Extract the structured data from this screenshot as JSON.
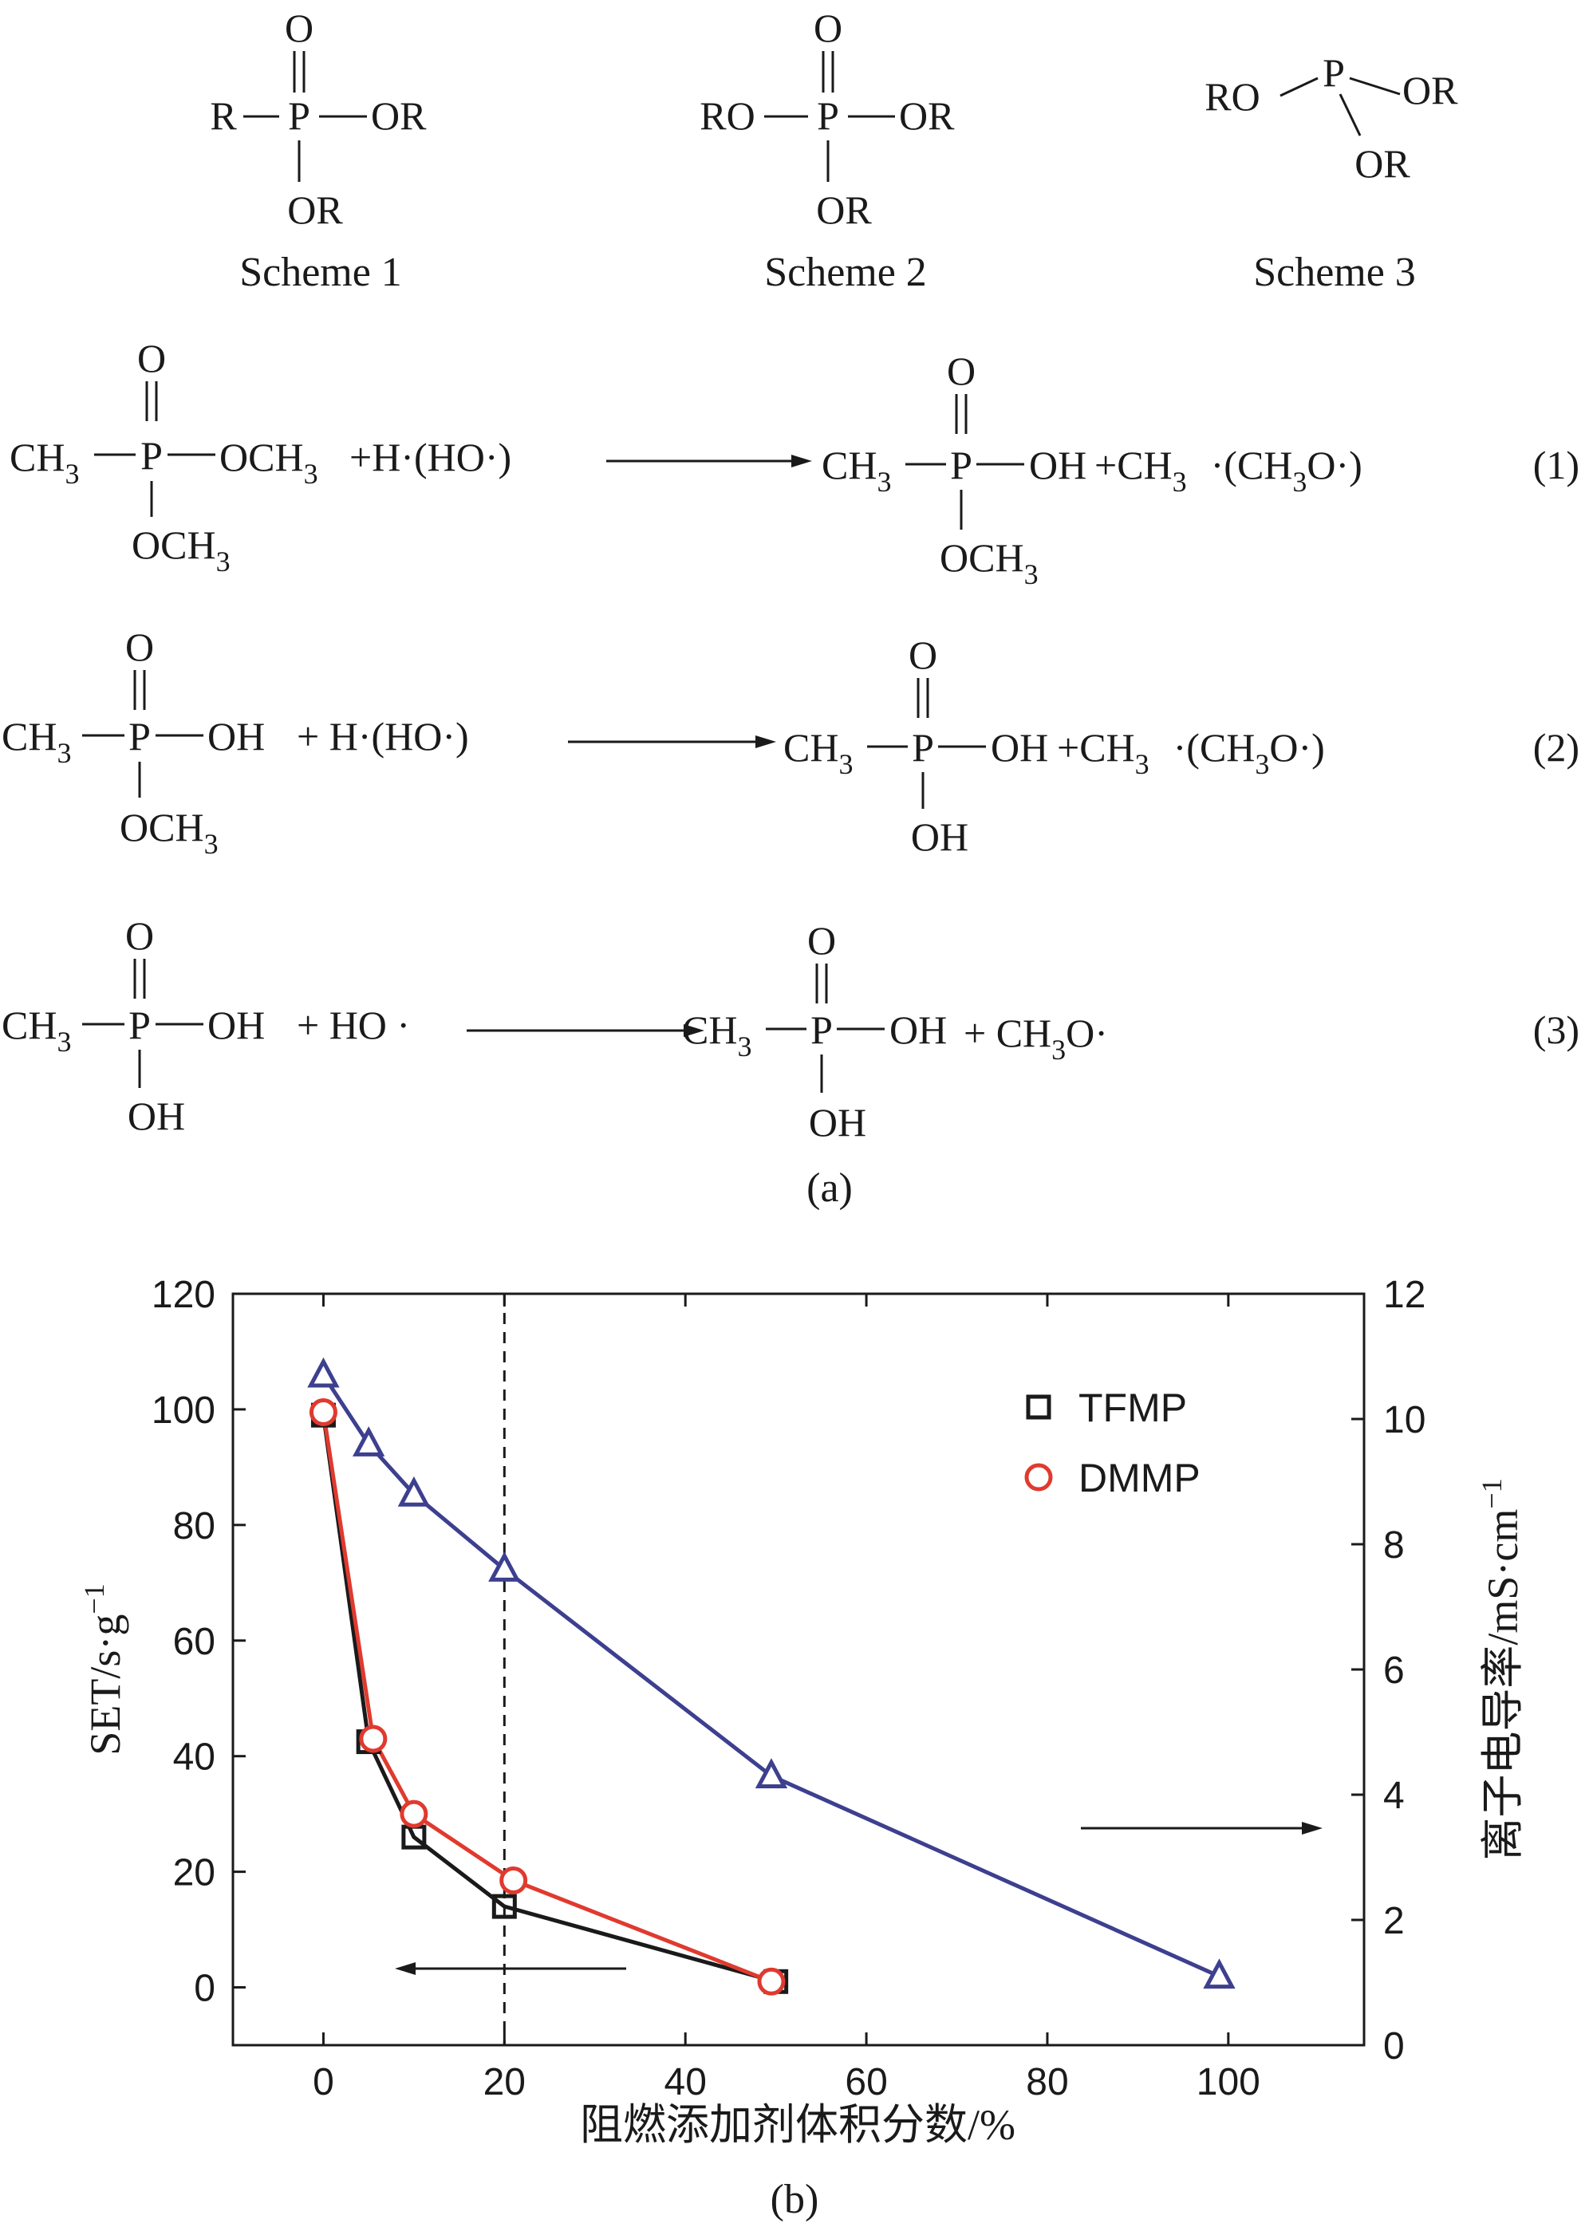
{
  "panel_a": {
    "caption": "(a)",
    "schemes": [
      {
        "label": "Scheme 1",
        "left": "R",
        "right": "OR",
        "top": "O",
        "bottom": "OR",
        "center": "P"
      },
      {
        "label": "Scheme 2",
        "left": "RO",
        "right": "OR",
        "top": "O",
        "bottom": "OR",
        "center": "P"
      },
      {
        "label": "Scheme 3",
        "left": "RO",
        "right": "OR",
        "bottom": "OR",
        "center": "P"
      }
    ],
    "reactions": [
      {
        "number": "(1)",
        "reactant": {
          "left": "CH",
          "left_sub": "3",
          "right": "OCH",
          "right_sub": "3",
          "top": "O",
          "bottom": "OCH",
          "bottom_sub": "3",
          "center": "P"
        },
        "reagent": "+H·(HO·)",
        "product": {
          "left": "CH",
          "left_sub": "3",
          "right": "OH",
          "top": "O",
          "bottom": "OCH",
          "bottom_sub": "3",
          "center": "P"
        },
        "byproduct": {
          "a": "+CH",
          "a_sub": "3",
          "b": "·(CH",
          "b_sub": "3",
          "c": "O·)"
        }
      },
      {
        "number": "(2)",
        "reactant": {
          "left": "CH",
          "left_sub": "3",
          "right": "OH",
          "top": "O",
          "bottom": "OCH",
          "bottom_sub": "3",
          "center": "P"
        },
        "reagent": "+ H·(HO·)",
        "product": {
          "left": "CH",
          "left_sub": "3",
          "right": "OH",
          "top": "O",
          "bottom": "OH",
          "center": "P"
        },
        "byproduct": {
          "a": "+CH",
          "a_sub": "3",
          "b": "·(CH",
          "b_sub": "3",
          "c": "O·)"
        }
      },
      {
        "number": "(3)",
        "reactant": {
          "left": "CH",
          "left_sub": "3",
          "right": "OH",
          "top": "O",
          "bottom": "OH",
          "center": "P"
        },
        "reagent": "+ HO ·",
        "product": {
          "left": "CH",
          "left_sub": "3",
          "right": "OH",
          "top": "O",
          "bottom": "OH",
          "center": "P"
        },
        "byproduct": {
          "a": "+ CH",
          "a_sub": "3",
          "b": "O·"
        }
      }
    ]
  },
  "chart_data": {
    "type": "line",
    "caption": "(b)",
    "xlabel": "阻燃添加剂体积分数/%",
    "ylabel_left_main": "SET/s·g",
    "ylabel_left_sup": "−1",
    "ylabel_right_main": "离子电导率/mS·cm",
    "ylabel_right_sup": "−1",
    "xlim": [
      -10,
      115
    ],
    "ylim_left": [
      -10,
      120
    ],
    "ylim_right": [
      0,
      12
    ],
    "xticks": [
      "0",
      "20",
      "40",
      "60",
      "80",
      "100"
    ],
    "xtick_values": [
      0,
      20,
      40,
      60,
      80,
      100
    ],
    "yticks_left": [
      "0",
      "20",
      "40",
      "60",
      "80",
      "100",
      "120"
    ],
    "ytick_values_left": [
      0,
      20,
      40,
      60,
      80,
      100,
      120
    ],
    "yticks_right": [
      "0",
      "2",
      "4",
      "6",
      "8",
      "10",
      "12"
    ],
    "ytick_values_right": [
      0,
      2,
      4,
      6,
      8,
      10,
      12
    ],
    "vline_x": 20,
    "series": [
      {
        "name": "TFMP",
        "axis": "left",
        "marker": "square",
        "color": "#1a1a1a",
        "x": [
          0,
          5,
          10,
          20,
          50
        ],
        "y": [
          99,
          42.5,
          26,
          14,
          1
        ]
      },
      {
        "name": "DMMP",
        "axis": "left",
        "marker": "circle",
        "color": "#e03a2f",
        "x": [
          0,
          5.5,
          10,
          21,
          49.5
        ],
        "y": [
          99.5,
          43,
          30,
          18.5,
          1
        ]
      },
      {
        "name": "conductivity",
        "axis": "right",
        "marker": "triangle",
        "color": "#3d3f8f",
        "x": [
          0,
          5,
          10,
          20,
          49.5,
          99
        ],
        "y": [
          10.7,
          9.6,
          8.8,
          7.6,
          4.3,
          1.1
        ]
      }
    ],
    "legend": [
      "TFMP",
      "DMMP"
    ],
    "legend_position": "top-right",
    "annotations": [
      {
        "type": "arrow",
        "direction": "left",
        "meaning": "left axis"
      },
      {
        "type": "arrow",
        "direction": "right",
        "meaning": "right axis"
      }
    ]
  }
}
